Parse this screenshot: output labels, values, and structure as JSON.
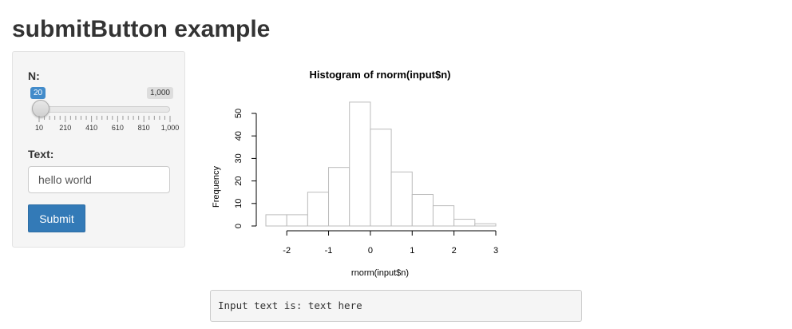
{
  "page": {
    "title": "submitButton example"
  },
  "sidebar": {
    "n_label": "N:",
    "slider": {
      "value": 20,
      "value_label": "20",
      "min": 10,
      "max": 1000,
      "max_label": "1,000",
      "tick_labels": [
        "10",
        "210",
        "410",
        "610",
        "810",
        "1,000"
      ]
    },
    "text_label": "Text:",
    "text_input_value": "hello world",
    "submit_label": "Submit"
  },
  "chart_data": {
    "type": "bar",
    "title": "Histogram of rnorm(input$n)",
    "xlabel": "rnorm(input$n)",
    "ylabel": "Frequency",
    "bin_edges": [
      -2.5,
      -2.0,
      -1.5,
      -1.0,
      -0.5,
      0.0,
      0.5,
      1.0,
      1.5,
      2.0,
      2.5,
      3.0
    ],
    "values": [
      5,
      5,
      15,
      26,
      55,
      43,
      24,
      14,
      9,
      3,
      1
    ],
    "xticks": [
      "-2",
      "-1",
      "0",
      "1",
      "2",
      "3"
    ],
    "xtick_values": [
      -2,
      -1,
      0,
      1,
      2,
      3
    ],
    "yticks": [
      "0",
      "10",
      "20",
      "30",
      "40",
      "50"
    ],
    "ytick_values": [
      0,
      10,
      20,
      30,
      40,
      50
    ],
    "xlim": [
      -2.5,
      3.0
    ],
    "ylim": [
      0,
      50
    ],
    "grid": false
  },
  "output": {
    "text": "Input text is: text here"
  }
}
